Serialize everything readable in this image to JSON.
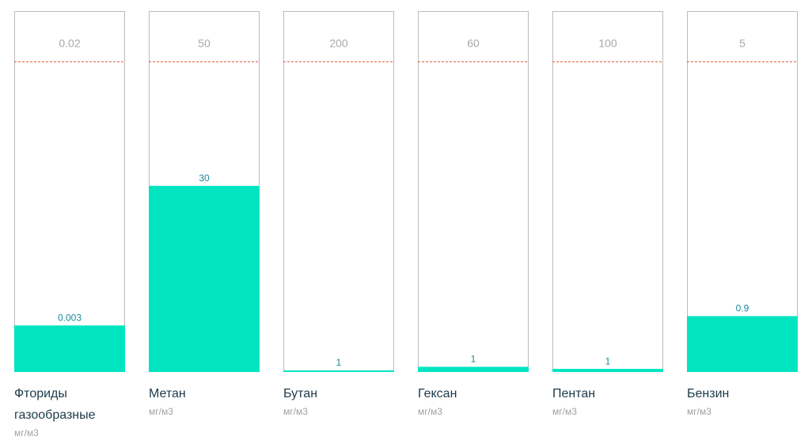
{
  "chart_data": [
    {
      "type": "bar",
      "title": "Фториды газообразные",
      "subtitle": "мг/м3",
      "threshold": 0.02,
      "values": [
        0.003
      ],
      "color": "#00e5c0"
    },
    {
      "type": "bar",
      "title": "Метан",
      "subtitle": "мг/м3",
      "threshold": 50,
      "values": [
        30
      ],
      "color": "#00e5c0"
    },
    {
      "type": "bar",
      "title": "Бутан",
      "subtitle": "мг/м3",
      "threshold": 200,
      "values": [
        1
      ],
      "color": "#00e5c0"
    },
    {
      "type": "bar",
      "title": "Гексан",
      "subtitle": "мг/м3",
      "threshold": 60,
      "values": [
        1
      ],
      "color": "#00e5c0"
    },
    {
      "type": "bar",
      "title": "Пентан",
      "subtitle": "мг/м3",
      "threshold": 100,
      "values": [
        1
      ],
      "color": "#00e5c0"
    },
    {
      "type": "bar",
      "title": "Бензин",
      "subtitle": "мг/м3",
      "threshold": 5,
      "values": [
        0.9
      ],
      "color": "#00e5c0"
    }
  ]
}
